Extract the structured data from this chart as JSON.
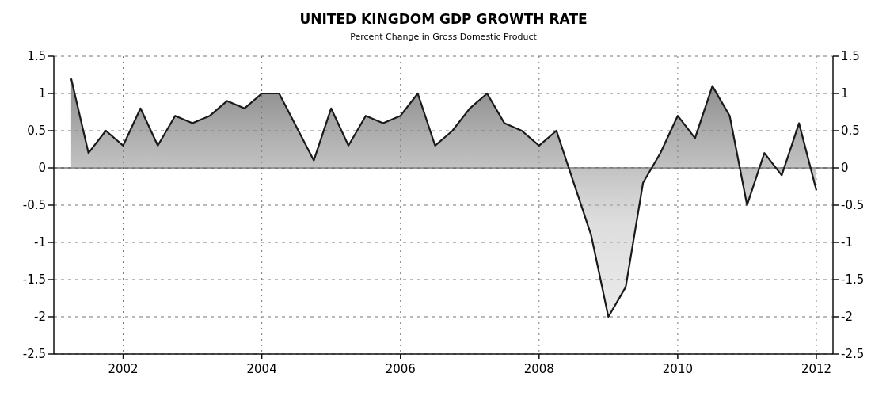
{
  "chart_data": {
    "type": "area",
    "title": "UNITED KINGDOM GDP GROWTH RATE",
    "subtitle": "Percent Change in Gross Domestic Product",
    "x": [
      2001.25,
      2001.5,
      2001.75,
      2002,
      2002.25,
      2002.5,
      2002.75,
      2003,
      2003.25,
      2003.5,
      2003.75,
      2004,
      2004.25,
      2004.5,
      2004.75,
      2005,
      2005.25,
      2005.5,
      2005.75,
      2006,
      2006.25,
      2006.5,
      2006.75,
      2007,
      2007.25,
      2007.5,
      2007.75,
      2008,
      2008.25,
      2008.5,
      2008.75,
      2009,
      2009.25,
      2009.5,
      2009.75,
      2010,
      2010.25,
      2010.5,
      2010.75,
      2011,
      2011.25,
      2011.5,
      2011.75,
      2012
    ],
    "series": [
      {
        "color": "#1a1a1a",
        "values": [
          1.2,
          0.2,
          0.5,
          0.3,
          0.8,
          0.3,
          0.7,
          0.6,
          0.7,
          0.9,
          0.8,
          1.0,
          1.0,
          0.55,
          0.1,
          0.8,
          0.3,
          0.7,
          0.6,
          0.7,
          1.0,
          0.3,
          0.5,
          0.8,
          1.0,
          0.6,
          0.5,
          0.3,
          0.5,
          -0.2,
          -0.9,
          -2.0,
          -1.6,
          -0.2,
          0.2,
          0.7,
          0.4,
          1.1,
          0.7,
          -0.5,
          0.2,
          -0.1,
          0.6,
          -0.3
        ]
      }
    ],
    "xlim": [
      2001,
      2012.24
    ],
    "xticks": [
      2002,
      2004,
      2006,
      2008,
      2010,
      2012
    ],
    "ylim": [
      -2.5,
      1.5
    ],
    "yticks": [
      -2.5,
      -2,
      -1.5,
      -1,
      -0.5,
      0,
      0.5,
      1,
      1.5
    ],
    "y2lim": [
      -2.5,
      1.5
    ],
    "y2ticks": [
      -2.5,
      -2,
      -1.5,
      -1,
      -0.5,
      0,
      0.5,
      1,
      1.5
    ],
    "grid": true,
    "line_style": "solid"
  }
}
